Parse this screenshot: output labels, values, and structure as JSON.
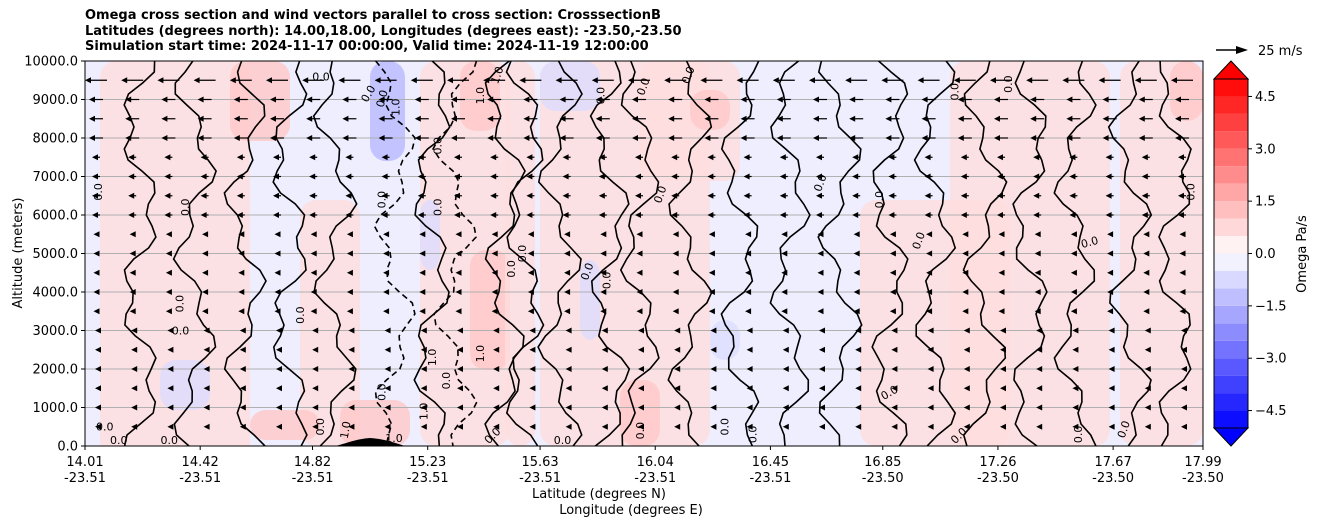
{
  "title_lines": [
    "Omega cross section and wind vectors parallel to cross section: CrosssectionB",
    "Latitudes (degrees north): 14.00,18.00, Longitudes (degrees east): -23.50,-23.50",
    "Simulation start time: 2024-11-17 00:00:00, Valid time: 2024-11-19 12:00:00"
  ],
  "quiver_key_label": "25 m/s",
  "chart_data": {
    "type": "heatmap",
    "ylabel": "Altitude (meters)",
    "xlabel_lat": "Latitude (degrees N)",
    "xlabel_lon": "Longitude (degrees E)",
    "ylim": [
      0,
      10000
    ],
    "y_ticks": [
      "0.0",
      "1000.0",
      "2000.0",
      "3000.0",
      "4000.0",
      "5000.0",
      "6000.0",
      "7000.0",
      "8000.0",
      "9000.0",
      "10000.0"
    ],
    "y_tick_values": [
      0,
      1000,
      2000,
      3000,
      4000,
      5000,
      6000,
      7000,
      8000,
      9000,
      10000
    ],
    "x_ticks_lat": [
      "14.01",
      "14.42",
      "14.82",
      "15.23",
      "15.63",
      "16.04",
      "16.45",
      "16.85",
      "17.26",
      "17.67",
      "17.99"
    ],
    "x_ticks_lon": [
      "-23.51",
      "-23.51",
      "-23.51",
      "-23.51",
      "-23.51",
      "-23.51",
      "-23.51",
      "-23.50",
      "-23.50",
      "-23.50",
      "-23.50"
    ],
    "x_tick_values": [
      14.01,
      14.42,
      14.82,
      15.23,
      15.63,
      16.04,
      16.45,
      16.85,
      17.26,
      17.67,
      17.99
    ],
    "xlim": [
      14.01,
      17.99
    ],
    "grid": "horizontal",
    "colorbar": {
      "label": "Omega Pa/s",
      "ticks": [
        "4.5",
        "3.0",
        "1.5",
        "0.0",
        "−1.5",
        "−3.0",
        "−4.5"
      ],
      "tick_values": [
        4.5,
        3.0,
        1.5,
        0.0,
        -1.5,
        -3.0,
        -4.5
      ],
      "range": [
        -5,
        5
      ],
      "colormap": "bwr",
      "extend": "both"
    },
    "contour_labels": [
      {
        "text": "0.0",
        "lat": 14.07,
        "alt": 6600,
        "rot": -90
      },
      {
        "text": "0.0",
        "lat": 14.08,
        "alt": 400,
        "rot": 0
      },
      {
        "text": "0.0",
        "lat": 14.13,
        "alt": 50,
        "rot": 0
      },
      {
        "text": "0.0",
        "lat": 14.31,
        "alt": 50,
        "rot": 0
      },
      {
        "text": "0.0",
        "lat": 14.38,
        "alt": 6200,
        "rot": -90
      },
      {
        "text": "0.0",
        "lat": 14.36,
        "alt": 3700,
        "rot": -90
      },
      {
        "text": "0.0",
        "lat": 14.35,
        "alt": 2900,
        "rot": 0
      },
      {
        "text": "0.0",
        "lat": 14.79,
        "alt": 3400,
        "rot": -90
      },
      {
        "text": "0.0",
        "lat": 14.85,
        "alt": 9500,
        "rot": 0
      },
      {
        "text": "0.0",
        "lat": 14.86,
        "alt": 500,
        "rot": -90
      },
      {
        "text": "0.0",
        "lat": 15.03,
        "alt": 9100,
        "rot": -60
      },
      {
        "text": "1.0",
        "lat": 14.95,
        "alt": 400,
        "rot": -80
      },
      {
        "text": "0.0",
        "lat": 15.08,
        "alt": 9000,
        "rot": -75
      },
      {
        "text": "1.0",
        "lat": 15.13,
        "alt": 8800,
        "rot": -90
      },
      {
        "text": "0.0",
        "lat": 15.08,
        "alt": 6400,
        "rot": -90
      },
      {
        "text": "0.0",
        "lat": 15.08,
        "alt": 1400,
        "rot": -90
      },
      {
        "text": "1.0",
        "lat": 15.11,
        "alt": 100,
        "rot": 0
      },
      {
        "text": "0.0",
        "lat": 15.28,
        "alt": 7800,
        "rot": -90
      },
      {
        "text": "0.0",
        "lat": 15.28,
        "alt": 6200,
        "rot": -90
      },
      {
        "text": "1.0",
        "lat": 15.26,
        "alt": 2300,
        "rot": -90
      },
      {
        "text": "0.0",
        "lat": 15.31,
        "alt": 1700,
        "rot": -90
      },
      {
        "text": "1.0",
        "lat": 15.23,
        "alt": 900,
        "rot": -90
      },
      {
        "text": "1.0",
        "lat": 15.43,
        "alt": 2400,
        "rot": -90
      },
      {
        "text": "1.0",
        "lat": 15.43,
        "alt": 9100,
        "rot": -90
      },
      {
        "text": "1.0",
        "lat": 15.49,
        "alt": 9600,
        "rot": -70
      },
      {
        "text": "0.0",
        "lat": 15.58,
        "alt": 5000,
        "rot": -90
      },
      {
        "text": "0.0",
        "lat": 15.54,
        "alt": 4600,
        "rot": -90
      },
      {
        "text": "0.0",
        "lat": 15.47,
        "alt": 200,
        "rot": -45
      },
      {
        "text": "0.0",
        "lat": 15.71,
        "alt": 50,
        "rot": 0
      },
      {
        "text": "0.0",
        "lat": 15.81,
        "alt": 4500,
        "rot": -70
      },
      {
        "text": "0.0",
        "lat": 15.88,
        "alt": 4300,
        "rot": -90
      },
      {
        "text": "0.0",
        "lat": 15.86,
        "alt": 9100,
        "rot": -90
      },
      {
        "text": "0.0",
        "lat": 16.01,
        "alt": 9300,
        "rot": -70
      },
      {
        "text": "0.0",
        "lat": 16.07,
        "alt": 6500,
        "rot": -70
      },
      {
        "text": "0.0",
        "lat": 16.17,
        "alt": 9600,
        "rot": -70
      },
      {
        "text": "0.0",
        "lat": 16.0,
        "alt": 400,
        "rot": -90
      },
      {
        "text": "0.0",
        "lat": 16.3,
        "alt": 500,
        "rot": -90
      },
      {
        "text": "0.0",
        "lat": 16.4,
        "alt": 300,
        "rot": -90
      },
      {
        "text": "0.0",
        "lat": 16.64,
        "alt": 6800,
        "rot": -70
      },
      {
        "text": "0.0",
        "lat": 16.85,
        "alt": 6400,
        "rot": -90
      },
      {
        "text": "0.0",
        "lat": 16.99,
        "alt": 5300,
        "rot": -70
      },
      {
        "text": "0.0",
        "lat": 16.88,
        "alt": 1300,
        "rot": -30
      },
      {
        "text": "0.0",
        "lat": 17.13,
        "alt": 200,
        "rot": -45
      },
      {
        "text": "0.0",
        "lat": 17.12,
        "alt": 9200,
        "rot": -90
      },
      {
        "text": "0.0",
        "lat": 17.31,
        "alt": 9400,
        "rot": -90
      },
      {
        "text": "0.0",
        "lat": 17.59,
        "alt": 5200,
        "rot": -15
      },
      {
        "text": "0.0",
        "lat": 17.56,
        "alt": 300,
        "rot": -90
      },
      {
        "text": "0.0",
        "lat": 17.72,
        "alt": 400,
        "rot": -70
      },
      {
        "text": "0.0",
        "lat": 17.96,
        "alt": 6600,
        "rot": -90
      }
    ]
  }
}
